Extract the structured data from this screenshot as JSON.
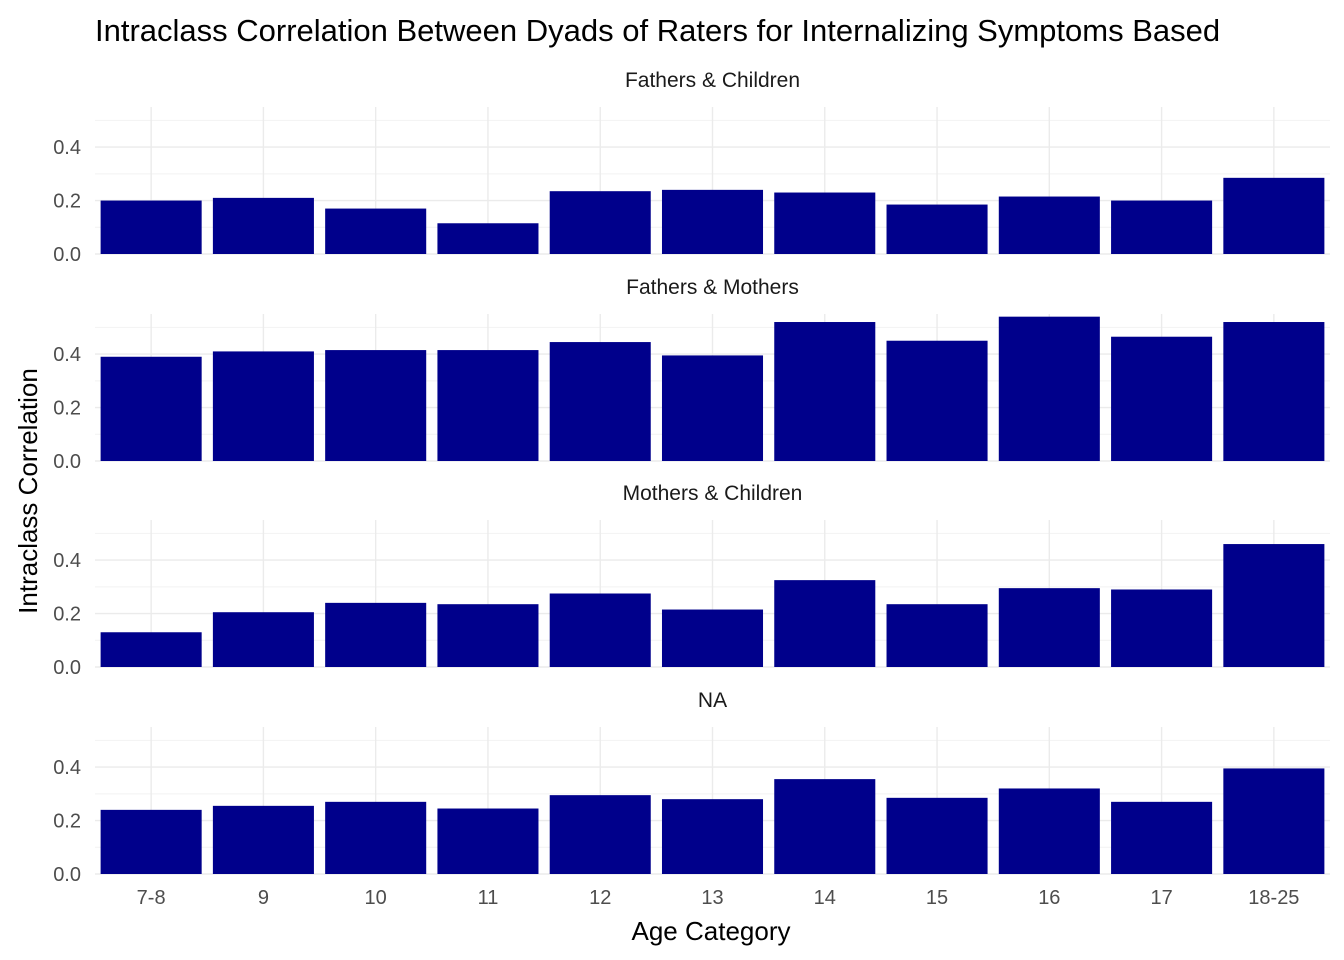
{
  "chart_data": {
    "type": "bar",
    "title": "Intraclass Correlation Between Dyads of Raters for Internalizing Symptoms Based",
    "xlabel": "Age Category",
    "ylabel": "Intraclass Correlation",
    "categories": [
      "7-8",
      "9",
      "10",
      "11",
      "12",
      "13",
      "14",
      "15",
      "16",
      "17",
      "18-25"
    ],
    "y_ticks": [
      "0.0",
      "0.2",
      "0.4"
    ],
    "ylim": [
      0,
      0.55
    ],
    "bar_color": "#00008B",
    "grid": true,
    "facets": [
      {
        "name": "Fathers & Children",
        "values": [
          0.2,
          0.21,
          0.17,
          0.115,
          0.235,
          0.24,
          0.23,
          0.185,
          0.215,
          0.2,
          0.285
        ]
      },
      {
        "name": "Fathers & Mothers",
        "values": [
          0.39,
          0.41,
          0.415,
          0.415,
          0.445,
          0.395,
          0.52,
          0.45,
          0.54,
          0.465,
          0.52
        ]
      },
      {
        "name": "Mothers & Children",
        "values": [
          0.13,
          0.205,
          0.24,
          0.235,
          0.275,
          0.215,
          0.325,
          0.235,
          0.295,
          0.29,
          0.46
        ]
      },
      {
        "name": "NA",
        "values": [
          0.24,
          0.255,
          0.27,
          0.245,
          0.295,
          0.28,
          0.355,
          0.285,
          0.32,
          0.27,
          0.395
        ]
      }
    ]
  }
}
